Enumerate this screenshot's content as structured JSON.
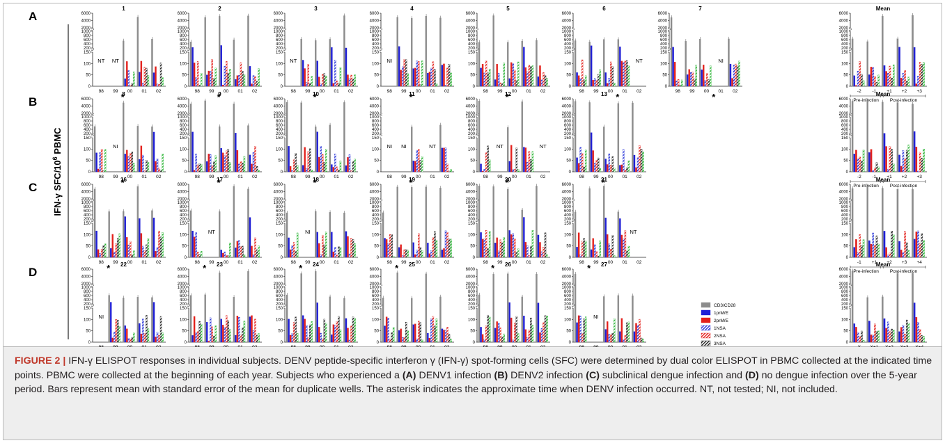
{
  "caption": {
    "figure_label": "FIGURE 2 |",
    "title": "IFN-γ ELISPOT responses in individual subjects.",
    "text1": "DENV peptide-specific interferon γ (IFN-γ) spot-forming cells (SFC) were determined by dual color ELISPOT in PBMC collected at the indicated time points. PBMC were collected at the beginning of each year. Subjects who experienced a",
    "lab_a": "(A)",
    "text_a": "DENV1 infection",
    "lab_b": "(B)",
    "text_b": "DENV2 infection",
    "lab_c": "(C)",
    "text_c": "subclinical dengue infection and",
    "lab_d": "(D)",
    "text_d": "no dengue infection over the 5-year period. Bars represent mean with standard error of the mean for duplicate wells. The asterisk indicates the approximate time when DENV infection occurred.",
    "abbr": "NT, not tested; NI, not included."
  },
  "chart_data": {
    "type": "bar",
    "y_axis_label_base": "IFN-γ SFC/10",
    "y_axis_label_exp": "6",
    "y_axis_label_tail": " PBMC",
    "y_ticks_upper": [
      "6000",
      "4000",
      "2000"
    ],
    "y_ticks_middle": [
      "1000",
      "800",
      "600",
      "400",
      "200"
    ],
    "y_ticks_lower": [
      "150",
      "100",
      "50",
      "0"
    ],
    "x_ticks_years": [
      "98",
      "99",
      "00",
      "01",
      "02"
    ],
    "legend": [
      {
        "label": "CD3/CD28",
        "color": "#8c8c8c",
        "pattern": "solid"
      },
      {
        "label": "1prM/E",
        "color": "#1f1fd6",
        "pattern": "solid"
      },
      {
        "label": "2prM/E",
        "color": "#e3201b",
        "pattern": "solid"
      },
      {
        "label": "1NSA",
        "color": "#2a36d8",
        "pattern": "hatch"
      },
      {
        "label": "2NSA",
        "color": "#e3201b",
        "pattern": "hatch"
      },
      {
        "label": "3NSA",
        "color": "#222222",
        "pattern": "hatch"
      },
      {
        "label": "4NSA",
        "color": "#2bb535",
        "pattern": "hatch"
      }
    ],
    "rows": [
      {
        "letter": "A",
        "panels": [
          {
            "title": "1",
            "markers": [
              {
                "text": "NT",
                "slot": 0
              },
              {
                "text": "NT",
                "slot": 1
              }
            ],
            "star_slot": 1.5
          },
          {
            "title": "2",
            "markers": [],
            "star_slot": 1.5
          },
          {
            "title": "3",
            "markers": [
              {
                "text": "NT",
                "slot": 0
              }
            ],
            "star_slot": 1.5
          },
          {
            "title": "4",
            "markers": [
              {
                "text": "NI",
                "slot": 0
              }
            ],
            "star_slot": 1.5
          },
          {
            "title": "5",
            "markers": [],
            "star_slot": 1.5
          },
          {
            "title": "6",
            "markers": [
              {
                "text": "NT",
                "slot": 4
              }
            ],
            "star_slot": 2.5
          },
          {
            "title": "7",
            "markers": [
              {
                "text": "NI",
                "slot": 3
              }
            ],
            "star_slot": 2.5
          }
        ],
        "mean": {
          "title": "Mean",
          "x": [
            "-2",
            "-1",
            "+1",
            "+2",
            "+3"
          ],
          "pre_label": "Pre-infection",
          "post_label": "Post-infection"
        }
      },
      {
        "letter": "B",
        "panels": [
          {
            "title": "8",
            "markers": [
              {
                "text": "NI",
                "slot": 1
              }
            ],
            "star_slot": 1.5
          },
          {
            "title": "9",
            "markers": [],
            "star_slot": 1.5
          },
          {
            "title": "10",
            "markers": [],
            "star_slot": 1.5
          },
          {
            "title": "11",
            "markers": [
              {
                "text": "NI",
                "slot": 0
              },
              {
                "text": "NI",
                "slot": 1
              },
              {
                "text": "NT",
                "slot": 3
              }
            ],
            "star_slot": 1.5
          },
          {
            "title": "12",
            "markers": [
              {
                "text": "NT",
                "slot": 1
              },
              {
                "text": "NT",
                "slot": 4
              }
            ],
            "star_slot": 1.5
          },
          {
            "title": "13",
            "markers": [],
            "star_slot": 1.5
          }
        ],
        "mean": {
          "title": "Mean",
          "x": [
            "-2",
            "-1",
            "+1",
            "+2",
            "+3"
          ],
          "pre_label": "Pre-infection",
          "post_label": "Post-infection"
        }
      },
      {
        "letter": "C",
        "panels": [
          {
            "title": "16",
            "markers": [],
            "star_slot": 0.5
          },
          {
            "title": "17",
            "markers": [
              {
                "text": "NT",
                "slot": 1
              }
            ],
            "star_slot": 0.5
          },
          {
            "title": "18",
            "markers": [
              {
                "text": "NI",
                "slot": 1
              }
            ],
            "star_slot": 0.5
          },
          {
            "title": "19",
            "markers": [],
            "star_slot": 0.5
          },
          {
            "title": "20",
            "markers": [],
            "star_slot": 0.5
          },
          {
            "title": "21",
            "markers": [
              {
                "text": "NT",
                "slot": 3.6
              }
            ],
            "star_slot": 0.5
          }
        ],
        "mean": {
          "title": "Mean",
          "x": [
            "-1",
            "+1",
            "+2",
            "+3",
            "+4"
          ],
          "pre_label": "Pre-infection",
          "post_label": "Post-infection"
        }
      },
      {
        "letter": "D",
        "panels": [
          {
            "title": "22",
            "markers": [
              {
                "text": "NI",
                "slot": 0
              }
            ],
            "star_slot": null
          },
          {
            "title": "23",
            "markers": [],
            "star_slot": null
          },
          {
            "title": "24",
            "markers": [],
            "star_slot": null
          },
          {
            "title": "25",
            "markers": [],
            "star_slot": null
          },
          {
            "title": "26",
            "markers": [],
            "star_slot": null
          },
          {
            "title": "27",
            "markers": [
              {
                "text": "NI",
                "slot": 1
              }
            ],
            "star_slot": null
          }
        ],
        "mean": {
          "title": "Mean",
          "x": [
            "X",
            "X+1",
            "X+2",
            "X+3",
            "X+4"
          ],
          "pre_label": "",
          "post_label": ""
        }
      }
    ]
  }
}
